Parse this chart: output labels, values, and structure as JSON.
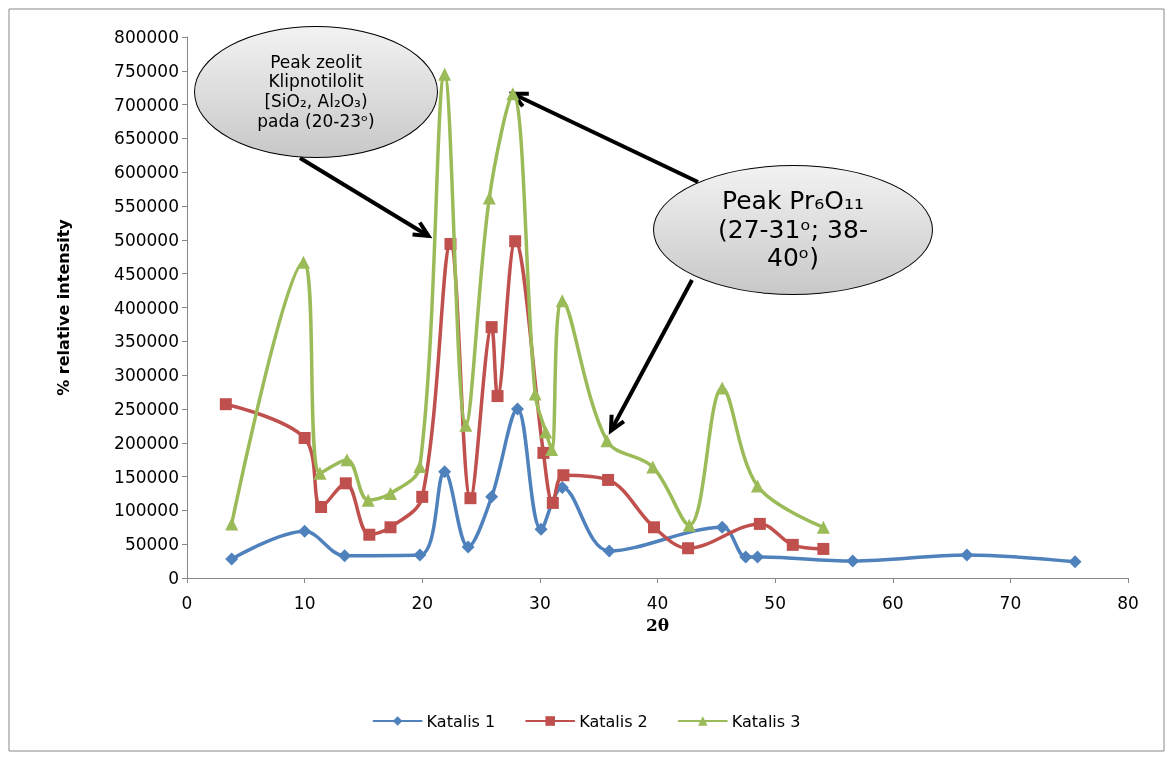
{
  "chart_data": {
    "type": "line",
    "xlabel": "2θ",
    "ylabel": "% relative intensity",
    "xlim": [
      0,
      80
    ],
    "xticks": [
      0,
      10,
      20,
      30,
      40,
      50,
      60,
      70,
      80
    ],
    "ylim": [
      0,
      800000
    ],
    "yticks": [
      0,
      50000,
      100000,
      150000,
      200000,
      250000,
      300000,
      350000,
      400000,
      450000,
      500000,
      550000,
      600000,
      650000,
      700000,
      750000,
      800000
    ],
    "grid": false,
    "legend": "bottom",
    "annotations": [
      "Peak zeolit Klipnotilolit [SiO₂, Al₂O₃) pada (20-23ᵒ)",
      {
        "text": "Peak Pr₆O₁₁ (27-31ᵒ;  38-40ᵒ)",
        "x": 27.7,
        "y": 716000
      }
    ],
    "series": [
      {
        "name": "Katalis 1",
        "color": "#4f81bd",
        "marker": "diamond",
        "x": [
          3.8,
          10.0,
          13.4,
          19.8,
          21.9,
          23.9,
          25.9,
          28.1,
          30.1,
          31.9,
          35.9,
          45.5,
          47.5,
          48.5,
          56.6,
          66.3,
          75.5
        ],
        "values": [
          28000,
          69000,
          33000,
          34000,
          157000,
          46000,
          120000,
          250000,
          72000,
          134000,
          40000,
          75000,
          31000,
          31000,
          25000,
          34000,
          24000
        ]
      },
      {
        "name": "Katalis 2",
        "color": "#c0504d",
        "marker": "square",
        "x": [
          3.3,
          10.0,
          11.4,
          13.5,
          15.5,
          17.3,
          20.0,
          22.4,
          24.1,
          25.9,
          26.4,
          27.9,
          30.3,
          31.1,
          32.0,
          35.8,
          39.7,
          42.6,
          48.7,
          51.5,
          54.1
        ],
        "values": [
          257000,
          207000,
          105000,
          140000,
          64000,
          75000,
          120000,
          494000,
          118000,
          371000,
          269000,
          498000,
          185000,
          111000,
          152000,
          145000,
          75000,
          44000,
          80000,
          49000,
          43000
        ]
      },
      {
        "name": "Katalis 3",
        "color": "#9bbb59",
        "marker": "triangle",
        "x": [
          3.8,
          9.9,
          11.3,
          13.6,
          15.4,
          17.3,
          19.8,
          21.9,
          23.7,
          25.7,
          27.7,
          29.6,
          30.5,
          31.0,
          31.9,
          35.7,
          39.6,
          42.7,
          45.5,
          48.5,
          54.1
        ],
        "values": [
          80000,
          467000,
          155000,
          175000,
          115000,
          125000,
          165000,
          745000,
          226000,
          562000,
          716000,
          272000,
          216000,
          190000,
          410000,
          203000,
          164000,
          78000,
          281000,
          136000,
          75000
        ]
      }
    ]
  }
}
